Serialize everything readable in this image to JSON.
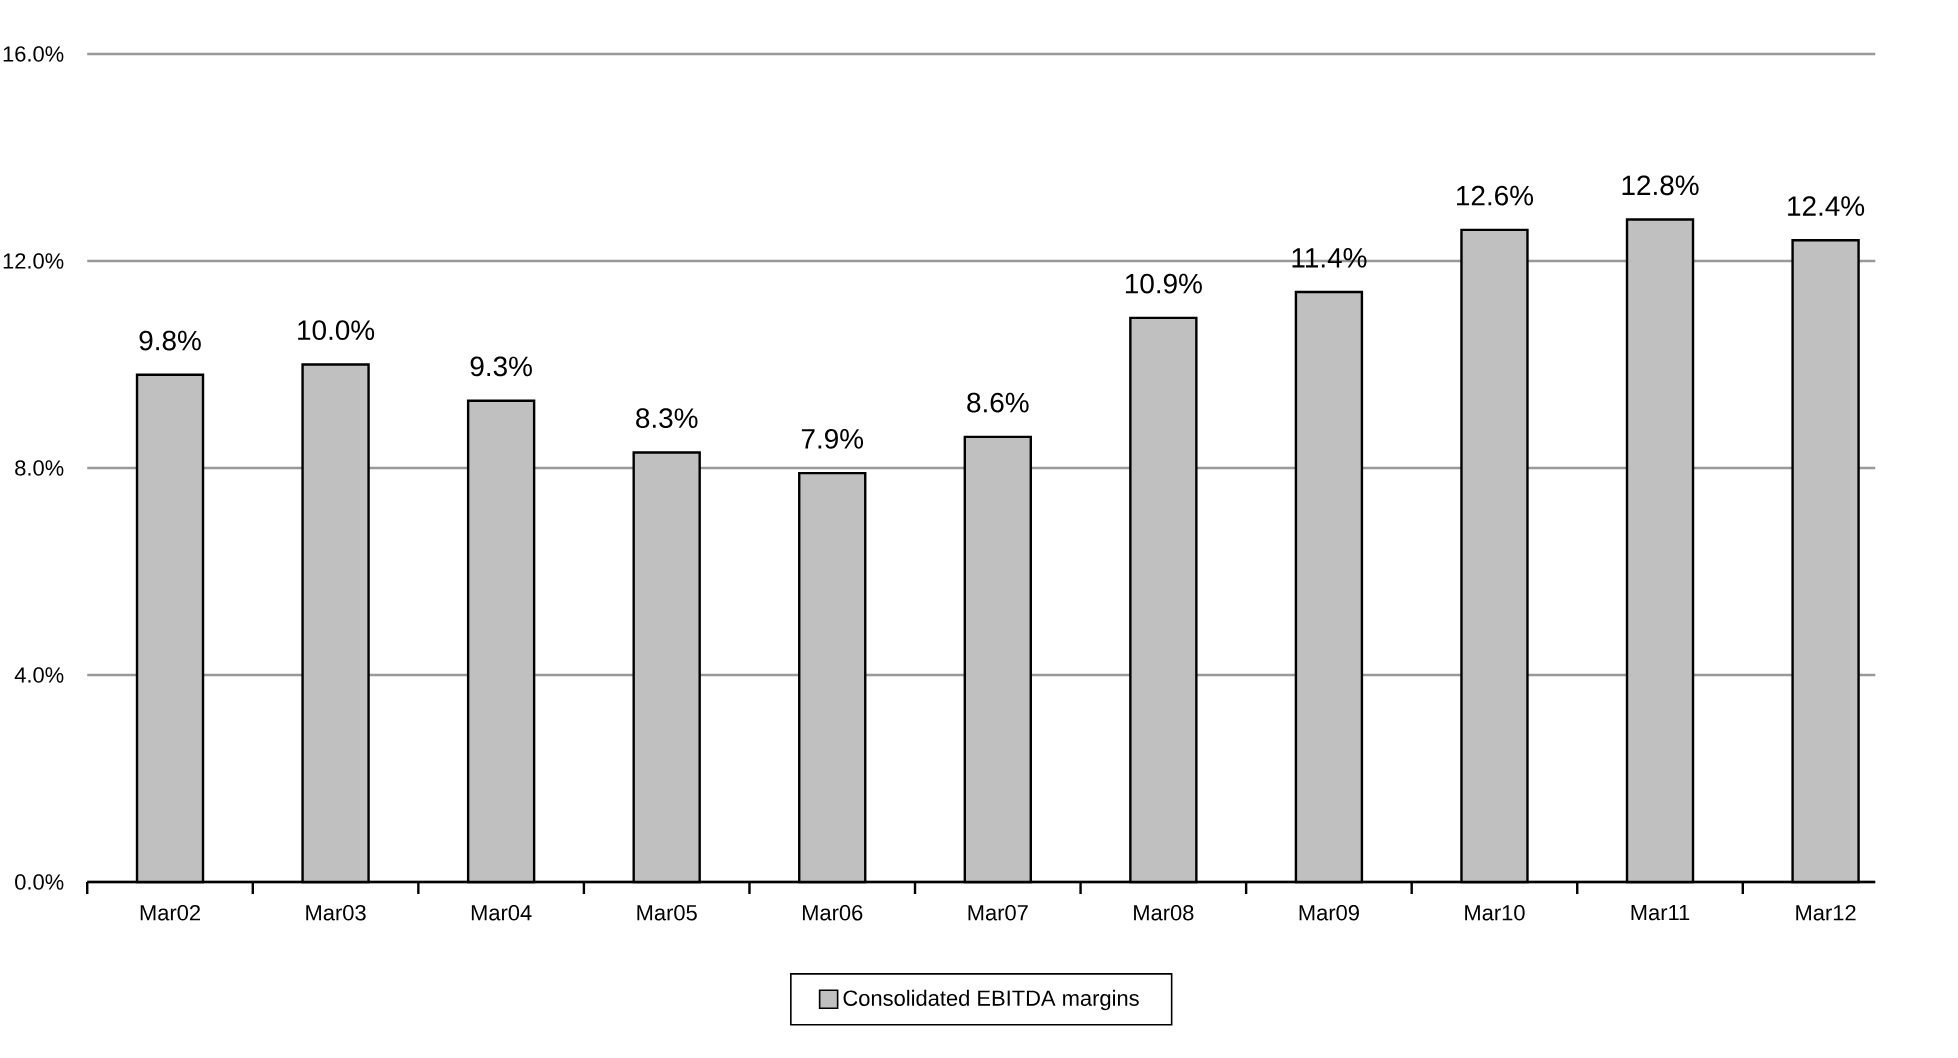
{
  "chart_data": {
    "type": "bar",
    "categories": [
      "Mar02",
      "Mar03",
      "Mar04",
      "Mar05",
      "Mar06",
      "Mar07",
      "Mar08",
      "Mar09",
      "Mar10",
      "Mar11",
      "Mar12"
    ],
    "series": [
      {
        "name": "Consolidated EBITDA margins",
        "color": "#c0c0c0",
        "values": [
          9.8,
          10.0,
          9.3,
          8.3,
          7.9,
          8.6,
          10.9,
          11.4,
          12.6,
          12.8,
          12.4
        ],
        "value_labels": [
          "9.8%",
          "10.0%",
          "9.3%",
          "8.3%",
          "7.9%",
          "8.6%",
          "10.9%",
          "11.4%",
          "12.6%",
          "12.8%",
          "12.4%"
        ]
      }
    ],
    "ylim": [
      0,
      16
    ],
    "yticks": [
      {
        "value": 0,
        "label": "0.0%"
      },
      {
        "value": 4,
        "label": "4.0%"
      },
      {
        "value": 8,
        "label": "8.0%"
      },
      {
        "value": 12,
        "label": "12.0%"
      },
      {
        "value": 16,
        "label": "16.0%"
      }
    ],
    "grid": "y",
    "legend": "bottom"
  }
}
